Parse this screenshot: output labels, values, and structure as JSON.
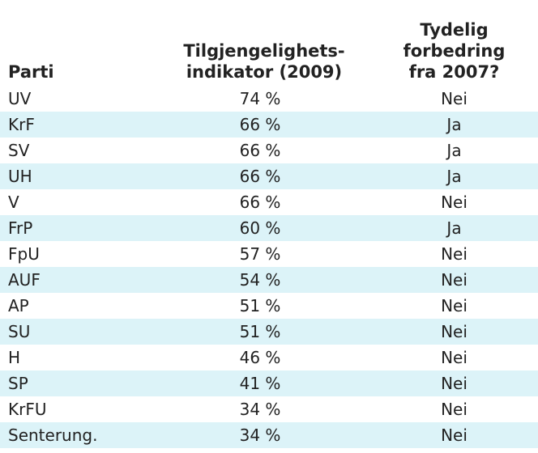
{
  "table": {
    "headers": [
      [
        "Parti"
      ],
      [
        "Tilgjengelighets-",
        "indikator (2009)"
      ],
      [
        "Tydelig",
        "forbedring",
        "fra 2007?"
      ]
    ],
    "rows": [
      [
        "UV",
        "74 %",
        "Nei"
      ],
      [
        "KrF",
        "66 %",
        "Ja"
      ],
      [
        "SV",
        "66 %",
        "Ja"
      ],
      [
        "UH",
        "66 %",
        "Ja"
      ],
      [
        "V",
        "66 %",
        "Nei"
      ],
      [
        "FrP",
        "60 %",
        "Ja"
      ],
      [
        "FpU",
        "57 %",
        "Nei"
      ],
      [
        "AUF",
        "54 %",
        "Nei"
      ],
      [
        "AP",
        "51 %",
        "Nei"
      ],
      [
        "SU",
        "51 %",
        "Nei"
      ],
      [
        "H",
        "46 %",
        "Nei"
      ],
      [
        "SP",
        "41 %",
        "Nei"
      ],
      [
        "KrFU",
        "34 %",
        "Nei"
      ],
      [
        "Senterung.",
        "34 %",
        "Nei"
      ]
    ]
  }
}
